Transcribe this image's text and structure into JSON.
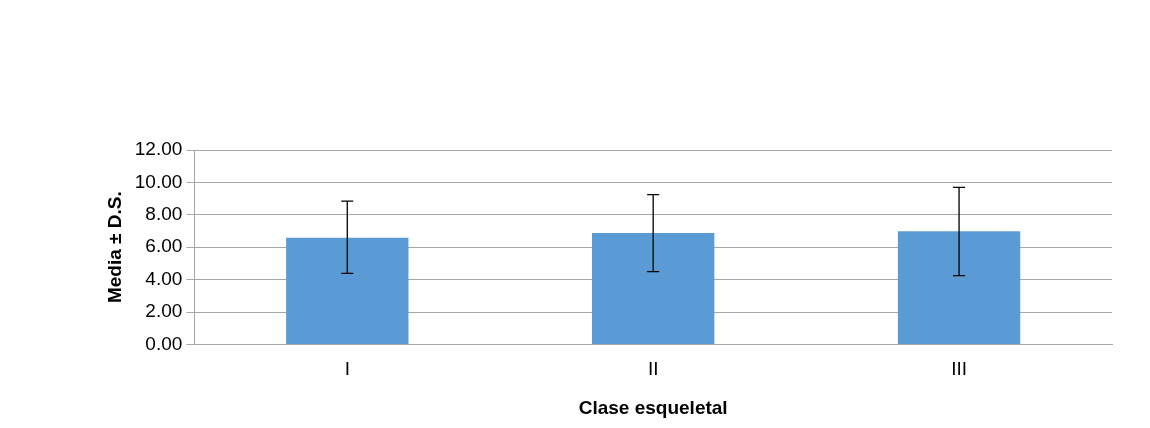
{
  "chart_data": {
    "type": "bar",
    "xlabel": "Clase esqueletal",
    "ylabel": "Media ± D.S.",
    "categories": [
      "I",
      "II",
      "III"
    ],
    "values": [
      6.59,
      6.87,
      6.98
    ],
    "errors": [
      [
        4.38,
        8.85
      ],
      [
        4.49,
        9.25
      ],
      [
        4.24,
        9.69
      ]
    ],
    "color": "#5b9bd5",
    "ylim": [
      0,
      12
    ],
    "yticks": [
      {
        "value": 0,
        "label": "0.00"
      },
      {
        "value": 2,
        "label": "2.00"
      },
      {
        "value": 4,
        "label": "4.00"
      },
      {
        "value": 6,
        "label": "6.00"
      },
      {
        "value": 8,
        "label": "8.00"
      },
      {
        "value": 10,
        "label": "10.00"
      },
      {
        "value": 12,
        "label": "12.00"
      }
    ],
    "grid": "y",
    "legend": false
  }
}
